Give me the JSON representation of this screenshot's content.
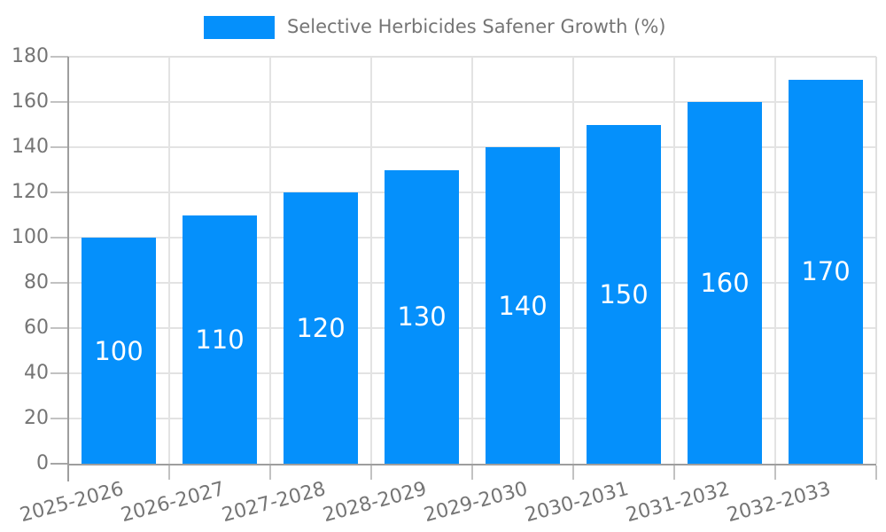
{
  "chart_data": {
    "type": "bar",
    "legend": {
      "label": "Selective Herbicides Safener Growth (%)",
      "position": "top"
    },
    "categories": [
      "2025-2026",
      "2026-2027",
      "2027-2028",
      "2028-2029",
      "2029-2030",
      "2030-2031",
      "2031-2032",
      "2032-2033"
    ],
    "values": [
      100,
      110,
      120,
      130,
      140,
      150,
      160,
      170
    ],
    "bar_labels": [
      "100",
      "110",
      "120",
      "130",
      "140",
      "150",
      "160",
      "170"
    ],
    "xlabel": "",
    "ylabel": "",
    "ylim": [
      0,
      180
    ],
    "ytick_step": 20,
    "yticks": [
      0,
      20,
      40,
      60,
      80,
      100,
      120,
      140,
      160,
      180
    ],
    "grid": true,
    "colors": {
      "bar": "#0590fb",
      "bar_label_text": "#ffffff",
      "axis_line": "#9e9e9e",
      "gridline": "#e3e3e3",
      "tick": "#c2c2c2",
      "zero_tick": "#a6a6a6",
      "text": "#757575",
      "background": "#ffffff"
    }
  }
}
